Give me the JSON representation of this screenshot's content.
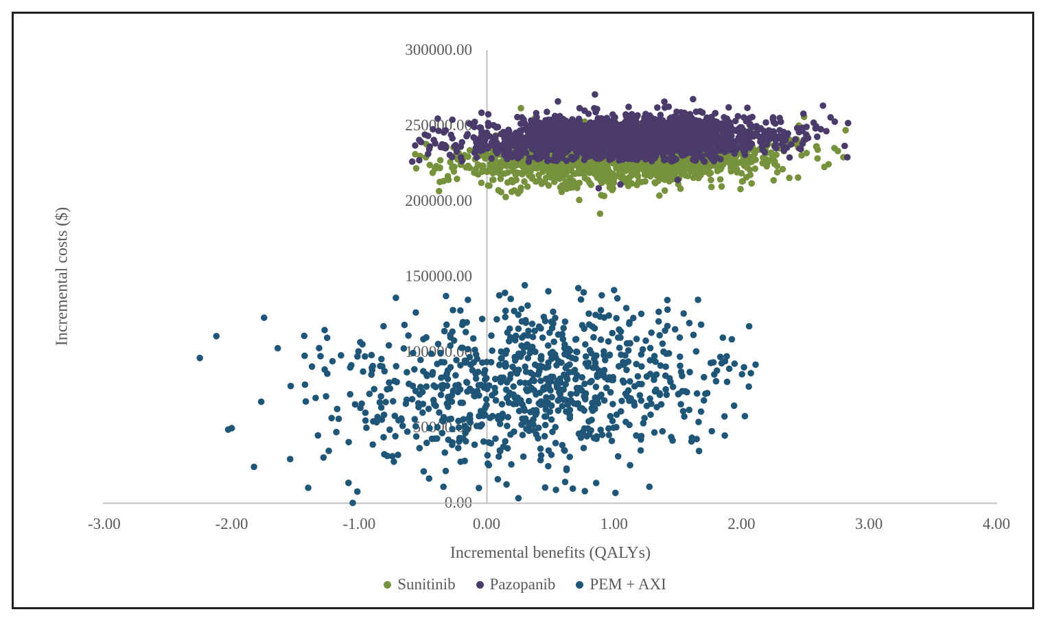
{
  "chart_data": {
    "type": "scatter",
    "title": "",
    "xlabel": "Incremental benefits (QALYs)",
    "ylabel": "Incremental costs ($)",
    "xlim": [
      -3.0,
      4.0
    ],
    "ylim": [
      0,
      300000
    ],
    "grid": false,
    "axis_lines": [
      "horizontal axis at y=0",
      "vertical axis line at x=0"
    ],
    "legend_position": "bottom",
    "x_ticks": [
      {
        "v": -3,
        "label": "-3.00"
      },
      {
        "v": -2,
        "label": "-2.00"
      },
      {
        "v": -1,
        "label": "-1.00"
      },
      {
        "v": 0,
        "label": "0.00"
      },
      {
        "v": 1,
        "label": "1.00"
      },
      {
        "v": 2,
        "label": "2.00"
      },
      {
        "v": 3,
        "label": "3.00"
      },
      {
        "v": 4,
        "label": "4.00"
      }
    ],
    "y_ticks": [
      {
        "v": 0,
        "label": "0.00"
      },
      {
        "v": 50000,
        "label": "50000.00"
      },
      {
        "v": 100000,
        "label": "100000.00"
      },
      {
        "v": 150000,
        "label": "150000.00"
      },
      {
        "v": 200000,
        "label": "200000.00"
      },
      {
        "v": 250000,
        "label": "250000.00"
      },
      {
        "v": 300000,
        "label": "300000.00"
      }
    ],
    "series": [
      {
        "name": "Sunitinib",
        "color": "#76923C",
        "marker": "circle",
        "n": 1500,
        "seed": 11,
        "mean": [
          1.02,
          227800
        ],
        "sd": [
          0.62,
          8200
        ],
        "rho": 0.2,
        "clip_x": [
          -0.62,
          2.84
        ],
        "clip_y": [
          191000,
          258500
        ],
        "outliers": [
          [
            0.89,
            191600
          ],
          [
            -0.56,
            231000
          ],
          [
            2.8,
            229000
          ],
          [
            0.9,
            203900
          ],
          [
            0.27,
            261500
          ],
          [
            0.38,
            255000
          ],
          [
            2.45,
            250000
          ]
        ]
      },
      {
        "name": "Pazopanib",
        "color": "#4B3B6B",
        "marker": "circle",
        "n": 2000,
        "seed": 22,
        "mean": [
          1.1,
          241600
        ],
        "sd": [
          0.62,
          7300
        ],
        "rho": 0.2,
        "clip_x": [
          -0.62,
          2.84
        ],
        "clip_y": [
          226000,
          272000
        ],
        "outliers": [
          [
            0.85,
            270600
          ],
          [
            0.56,
            266000
          ],
          [
            1.62,
            267500
          ],
          [
            1.9,
            262000
          ],
          [
            0.73,
            261500
          ],
          [
            -0.56,
            236800
          ],
          [
            2.81,
            236500
          ],
          [
            2.3,
            255000
          ],
          [
            0.88,
            208500
          ],
          [
            1.05,
            211000
          ],
          [
            1.5,
            214000
          ]
        ]
      },
      {
        "name": "PEM + AXI",
        "color": "#1F5577",
        "marker": "circle",
        "n": 850,
        "seed": 33,
        "mean": [
          0.33,
          78000
        ],
        "sd": [
          0.77,
          27500
        ],
        "rho": 0.15,
        "clip_x": [
          -2.33,
          2.12
        ],
        "clip_y": [
          2000,
          146000
        ],
        "outliers": [
          [
            -1.05,
            0
          ],
          [
            0.3,
            144200
          ],
          [
            0.1,
            137500
          ],
          [
            -2.25,
            96000
          ],
          [
            -2.12,
            110500
          ],
          [
            -2.0,
            49500
          ],
          [
            2.06,
            117000
          ]
        ]
      }
    ]
  },
  "legend": {
    "items": [
      {
        "label": "Sunitinib",
        "color": "#76923C"
      },
      {
        "label": "Pazopanib",
        "color": "#4B3B6B"
      },
      {
        "label": "PEM + AXI",
        "color": "#1F5577"
      }
    ]
  },
  "colors": {
    "background": "#FFFFFF",
    "frame_border": "#202020",
    "axis_line": "#BFBFBF",
    "text": "#595959"
  }
}
